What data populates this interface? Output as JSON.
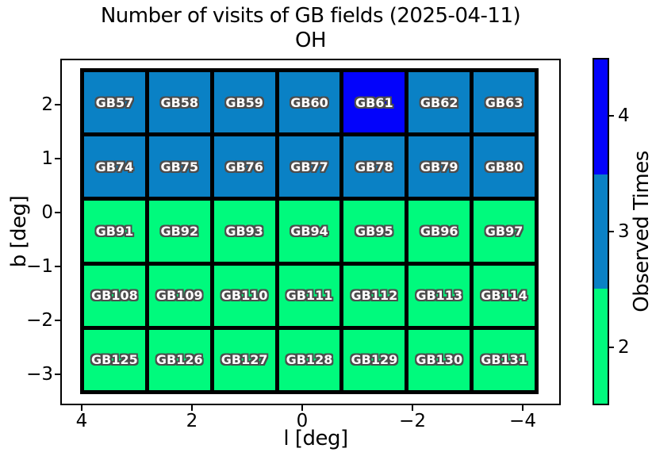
{
  "chart_data": {
    "type": "heatmap",
    "title": "Number of visits of GB fields (2025-04-11)",
    "subtitle": "OH",
    "xlabel": "l [deg]",
    "ylabel": "b [deg]",
    "x_tick_labels": [
      "4",
      "2",
      "0",
      "−2",
      "−4"
    ],
    "y_tick_labels": [
      "2",
      "1",
      "0",
      "−1",
      "−2",
      "−3"
    ],
    "x_axis_inverted": true,
    "grid": {
      "rows": 5,
      "cols": 7
    },
    "rows": [
      {
        "fields": [
          "GB57",
          "GB58",
          "GB59",
          "GB60",
          "GB61",
          "GB62",
          "GB63"
        ],
        "visits": [
          3,
          3,
          3,
          3,
          4,
          3,
          3
        ]
      },
      {
        "fields": [
          "GB74",
          "GB75",
          "GB76",
          "GB77",
          "GB78",
          "GB79",
          "GB80"
        ],
        "visits": [
          3,
          3,
          3,
          3,
          3,
          3,
          3
        ]
      },
      {
        "fields": [
          "GB91",
          "GB92",
          "GB93",
          "GB94",
          "GB95",
          "GB96",
          "GB97"
        ],
        "visits": [
          2,
          2,
          2,
          2,
          2,
          2,
          2
        ]
      },
      {
        "fields": [
          "GB108",
          "GB109",
          "GB110",
          "GB111",
          "GB112",
          "GB113",
          "GB114"
        ],
        "visits": [
          2,
          2,
          2,
          2,
          2,
          2,
          2
        ]
      },
      {
        "fields": [
          "GB125",
          "GB126",
          "GB127",
          "GB128",
          "GB129",
          "GB130",
          "GB131"
        ],
        "visits": [
          2,
          2,
          2,
          2,
          2,
          2,
          2
        ]
      }
    ],
    "value_colors": {
      "2": "#00fa7d",
      "3": "#0a81c5",
      "4": "#0303fb"
    },
    "colorbar": {
      "label": "Observed Times",
      "tick_labels_top_to_bottom": [
        "4",
        "3",
        "2"
      ],
      "segment_values_top_to_bottom": [
        4,
        3,
        2
      ]
    },
    "cell_text_color": "#ffffff",
    "cell_text_outline_color": "#4d4d4d",
    "grid_line_color": "#000000"
  }
}
